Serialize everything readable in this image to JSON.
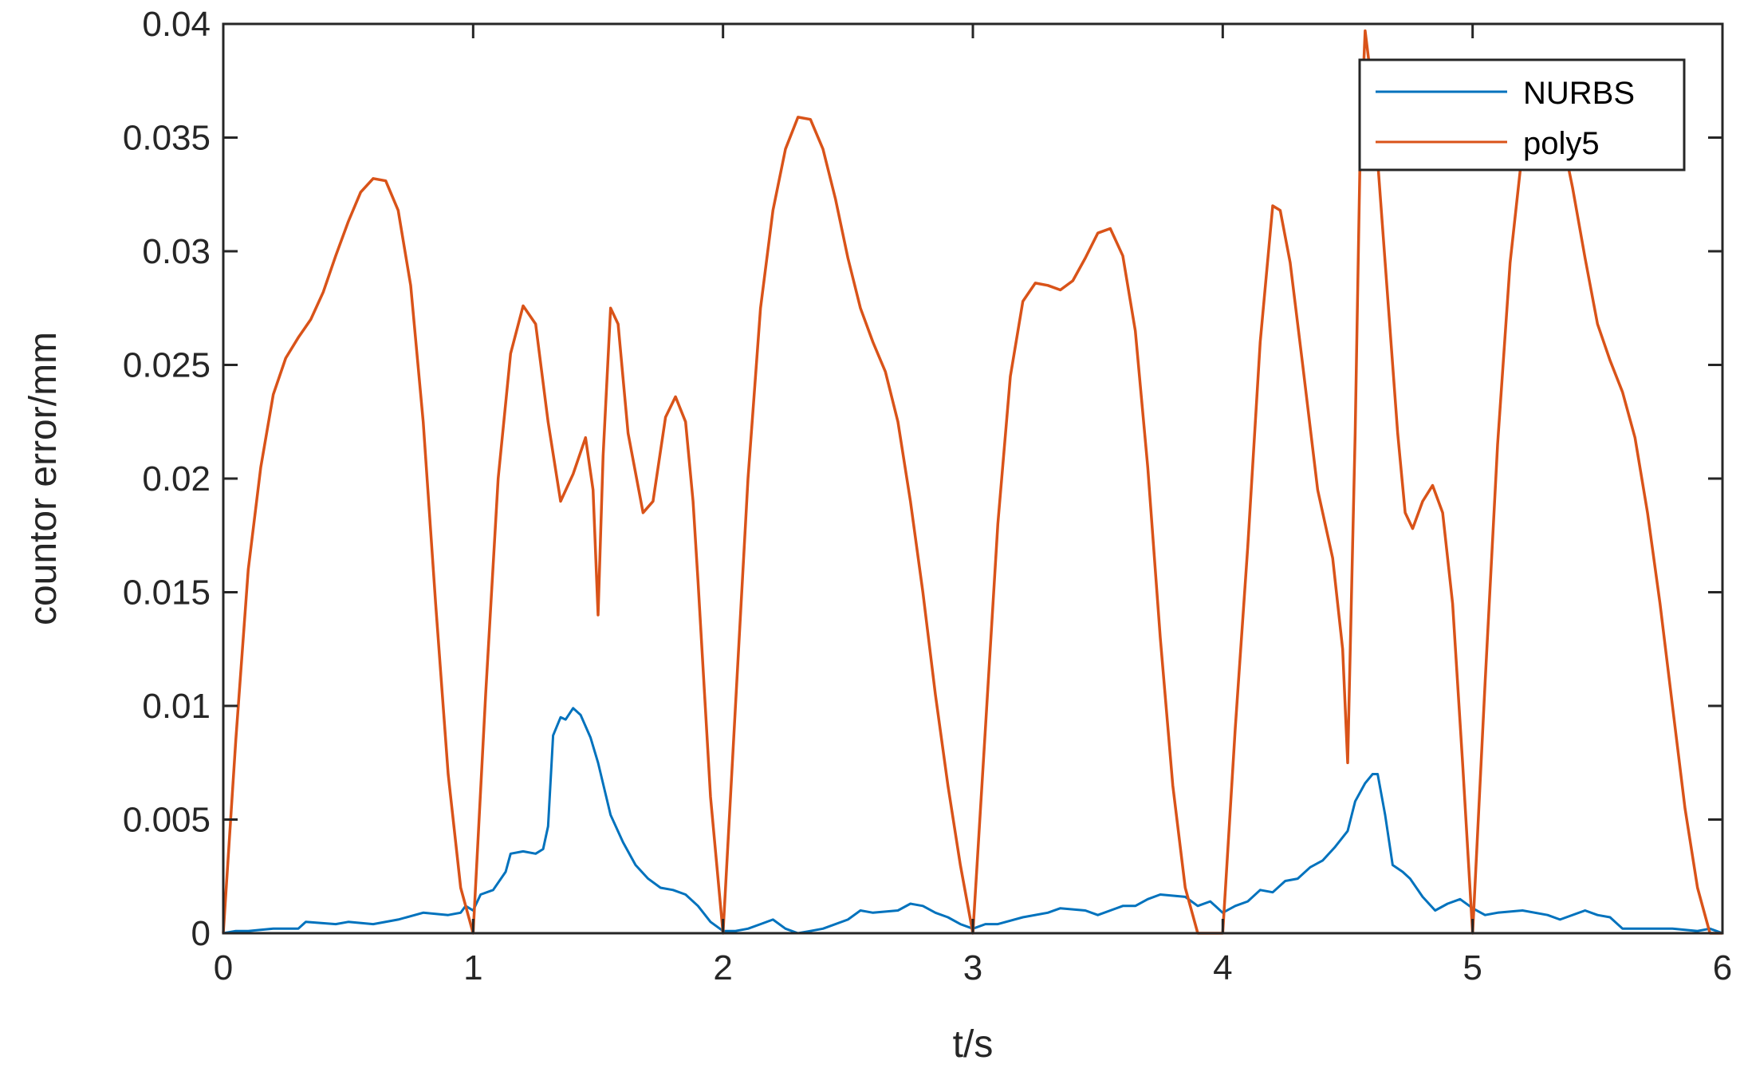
{
  "chart_data": {
    "type": "line",
    "title": "",
    "xlabel": "t/s",
    "ylabel": "countor error/mm",
    "xlim": [
      0,
      6
    ],
    "ylim": [
      0,
      0.04
    ],
    "xticks": [
      0,
      1,
      2,
      3,
      4,
      5,
      6
    ],
    "yticks": [
      0,
      0.005,
      0.01,
      0.015,
      0.02,
      0.025,
      0.03,
      0.035,
      0.04
    ],
    "xtick_labels": [
      "0",
      "1",
      "2",
      "3",
      "4",
      "5",
      "6"
    ],
    "ytick_labels": [
      "0",
      "0.005",
      "0.01",
      "0.015",
      "0.02",
      "0.025",
      "0.03",
      "0.035",
      "0.04"
    ],
    "grid": false,
    "legend_position": "top-right",
    "series": [
      {
        "name": "NURBS",
        "color": "#0072BD",
        "points": [
          [
            0,
            0
          ],
          [
            0.05,
            0.0001
          ],
          [
            0.1,
            0.0001
          ],
          [
            0.2,
            0.0002
          ],
          [
            0.3,
            0.0002
          ],
          [
            0.33,
            0.0005
          ],
          [
            0.45,
            0.0004
          ],
          [
            0.5,
            0.0005
          ],
          [
            0.6,
            0.0004
          ],
          [
            0.7,
            0.0006
          ],
          [
            0.8,
            0.0009
          ],
          [
            0.9,
            0.0008
          ],
          [
            0.95,
            0.0009
          ],
          [
            0.97,
            0.0012
          ],
          [
            1.0,
            0.001
          ],
          [
            1.03,
            0.0017
          ],
          [
            1.08,
            0.0019
          ],
          [
            1.13,
            0.0027
          ],
          [
            1.15,
            0.0035
          ],
          [
            1.2,
            0.0036
          ],
          [
            1.25,
            0.0035
          ],
          [
            1.28,
            0.0037
          ],
          [
            1.3,
            0.0047
          ],
          [
            1.32,
            0.0087
          ],
          [
            1.35,
            0.0095
          ],
          [
            1.37,
            0.0094
          ],
          [
            1.4,
            0.0099
          ],
          [
            1.43,
            0.0096
          ],
          [
            1.47,
            0.0086
          ],
          [
            1.5,
            0.0075
          ],
          [
            1.55,
            0.0052
          ],
          [
            1.6,
            0.004
          ],
          [
            1.65,
            0.003
          ],
          [
            1.7,
            0.0024
          ],
          [
            1.75,
            0.002
          ],
          [
            1.8,
            0.0019
          ],
          [
            1.85,
            0.0017
          ],
          [
            1.9,
            0.0012
          ],
          [
            1.95,
            0.0005
          ],
          [
            2.0,
            0.0001
          ],
          [
            2.05,
            0.0001
          ],
          [
            2.1,
            0.0002
          ],
          [
            2.15,
            0.0004
          ],
          [
            2.2,
            0.0006
          ],
          [
            2.25,
            0.0002
          ],
          [
            2.3,
            0.0
          ],
          [
            2.35,
            0.0001
          ],
          [
            2.4,
            0.0002
          ],
          [
            2.5,
            0.0006
          ],
          [
            2.55,
            0.001
          ],
          [
            2.6,
            0.0009
          ],
          [
            2.7,
            0.001
          ],
          [
            2.75,
            0.0013
          ],
          [
            2.8,
            0.0012
          ],
          [
            2.85,
            0.0009
          ],
          [
            2.9,
            0.0007
          ],
          [
            2.95,
            0.0004
          ],
          [
            3.0,
            0.0002
          ],
          [
            3.05,
            0.0004
          ],
          [
            3.1,
            0.0004
          ],
          [
            3.2,
            0.0007
          ],
          [
            3.3,
            0.0009
          ],
          [
            3.35,
            0.0011
          ],
          [
            3.45,
            0.001
          ],
          [
            3.5,
            0.0008
          ],
          [
            3.6,
            0.0012
          ],
          [
            3.65,
            0.0012
          ],
          [
            3.7,
            0.0015
          ],
          [
            3.75,
            0.0017
          ],
          [
            3.85,
            0.0016
          ],
          [
            3.9,
            0.0012
          ],
          [
            3.95,
            0.0014
          ],
          [
            4.0,
            0.0009
          ],
          [
            4.05,
            0.0012
          ],
          [
            4.1,
            0.0014
          ],
          [
            4.15,
            0.0019
          ],
          [
            4.2,
            0.0018
          ],
          [
            4.25,
            0.0023
          ],
          [
            4.3,
            0.0024
          ],
          [
            4.35,
            0.0029
          ],
          [
            4.4,
            0.0032
          ],
          [
            4.45,
            0.0038
          ],
          [
            4.5,
            0.0045
          ],
          [
            4.53,
            0.0058
          ],
          [
            4.57,
            0.0066
          ],
          [
            4.6,
            0.007
          ],
          [
            4.62,
            0.007
          ],
          [
            4.65,
            0.0052
          ],
          [
            4.68,
            0.003
          ],
          [
            4.72,
            0.0027
          ],
          [
            4.75,
            0.0024
          ],
          [
            4.8,
            0.0016
          ],
          [
            4.85,
            0.001
          ],
          [
            4.9,
            0.0013
          ],
          [
            4.95,
            0.0015
          ],
          [
            5.0,
            0.0011
          ],
          [
            5.05,
            0.0008
          ],
          [
            5.1,
            0.0009
          ],
          [
            5.2,
            0.001
          ],
          [
            5.3,
            0.0008
          ],
          [
            5.35,
            0.0006
          ],
          [
            5.45,
            0.001
          ],
          [
            5.5,
            0.0008
          ],
          [
            5.55,
            0.0007
          ],
          [
            5.6,
            0.0002
          ],
          [
            5.7,
            0.0002
          ],
          [
            5.8,
            0.0002
          ],
          [
            5.9,
            0.0001
          ],
          [
            5.95,
            0.0002
          ],
          [
            6.0,
            0
          ]
        ]
      },
      {
        "name": "poly5",
        "color": "#D95319",
        "points": [
          [
            0,
            0
          ],
          [
            0.05,
            0.0085
          ],
          [
            0.1,
            0.016
          ],
          [
            0.15,
            0.0205
          ],
          [
            0.2,
            0.0237
          ],
          [
            0.25,
            0.0253
          ],
          [
            0.3,
            0.0262
          ],
          [
            0.35,
            0.027
          ],
          [
            0.4,
            0.0282
          ],
          [
            0.45,
            0.0298
          ],
          [
            0.5,
            0.0313
          ],
          [
            0.55,
            0.0326
          ],
          [
            0.6,
            0.0332
          ],
          [
            0.65,
            0.0331
          ],
          [
            0.7,
            0.0318
          ],
          [
            0.75,
            0.0285
          ],
          [
            0.8,
            0.0225
          ],
          [
            0.85,
            0.0145
          ],
          [
            0.9,
            0.007
          ],
          [
            0.95,
            0.002
          ],
          [
            1.0,
            0.0
          ],
          [
            1.05,
            0.0105
          ],
          [
            1.1,
            0.02
          ],
          [
            1.15,
            0.0255
          ],
          [
            1.2,
            0.0276
          ],
          [
            1.25,
            0.0268
          ],
          [
            1.3,
            0.0225
          ],
          [
            1.35,
            0.019
          ],
          [
            1.4,
            0.0202
          ],
          [
            1.45,
            0.0218
          ],
          [
            1.48,
            0.0195
          ],
          [
            1.5,
            0.014
          ],
          [
            1.52,
            0.021
          ],
          [
            1.55,
            0.0275
          ],
          [
            1.58,
            0.0268
          ],
          [
            1.62,
            0.022
          ],
          [
            1.68,
            0.0185
          ],
          [
            1.72,
            0.019
          ],
          [
            1.77,
            0.0227
          ],
          [
            1.81,
            0.0236
          ],
          [
            1.85,
            0.0225
          ],
          [
            1.88,
            0.019
          ],
          [
            1.9,
            0.0155
          ],
          [
            1.95,
            0.006
          ],
          [
            2.0,
            0.0
          ],
          [
            2.05,
            0.01
          ],
          [
            2.1,
            0.02
          ],
          [
            2.15,
            0.0275
          ],
          [
            2.2,
            0.0318
          ],
          [
            2.25,
            0.0345
          ],
          [
            2.3,
            0.0359
          ],
          [
            2.35,
            0.0358
          ],
          [
            2.4,
            0.0345
          ],
          [
            2.45,
            0.0323
          ],
          [
            2.5,
            0.0297
          ],
          [
            2.55,
            0.0275
          ],
          [
            2.6,
            0.026
          ],
          [
            2.65,
            0.0247
          ],
          [
            2.7,
            0.0225
          ],
          [
            2.75,
            0.019
          ],
          [
            2.8,
            0.015
          ],
          [
            2.85,
            0.0105
          ],
          [
            2.9,
            0.0065
          ],
          [
            2.95,
            0.003
          ],
          [
            3.0,
            0.0
          ],
          [
            3.05,
            0.009
          ],
          [
            3.1,
            0.018
          ],
          [
            3.15,
            0.0245
          ],
          [
            3.2,
            0.0278
          ],
          [
            3.25,
            0.0286
          ],
          [
            3.3,
            0.0285
          ],
          [
            3.35,
            0.0283
          ],
          [
            3.4,
            0.0287
          ],
          [
            3.45,
            0.0297
          ],
          [
            3.5,
            0.0308
          ],
          [
            3.55,
            0.031
          ],
          [
            3.6,
            0.0298
          ],
          [
            3.65,
            0.0265
          ],
          [
            3.7,
            0.0205
          ],
          [
            3.75,
            0.013
          ],
          [
            3.8,
            0.0065
          ],
          [
            3.85,
            0.002
          ],
          [
            3.9,
            0.0
          ],
          [
            4.0,
            0.0
          ],
          [
            4.05,
            0.009
          ],
          [
            4.1,
            0.017
          ],
          [
            4.15,
            0.026
          ],
          [
            4.2,
            0.032
          ],
          [
            4.23,
            0.0318
          ],
          [
            4.27,
            0.0295
          ],
          [
            4.32,
            0.025
          ],
          [
            4.38,
            0.0195
          ],
          [
            4.44,
            0.0165
          ],
          [
            4.48,
            0.0125
          ],
          [
            4.5,
            0.0075
          ],
          [
            4.53,
            0.022
          ],
          [
            4.55,
            0.0345
          ],
          [
            4.57,
            0.0397
          ],
          [
            4.6,
            0.037
          ],
          [
            4.65,
            0.0295
          ],
          [
            4.7,
            0.022
          ],
          [
            4.73,
            0.0185
          ],
          [
            4.76,
            0.0178
          ],
          [
            4.8,
            0.019
          ],
          [
            4.84,
            0.0197
          ],
          [
            4.88,
            0.0185
          ],
          [
            4.92,
            0.0145
          ],
          [
            4.96,
            0.0075
          ],
          [
            5.0,
            0.0
          ],
          [
            5.05,
            0.011
          ],
          [
            5.1,
            0.0215
          ],
          [
            5.15,
            0.0295
          ],
          [
            5.2,
            0.0345
          ],
          [
            5.25,
            0.037
          ],
          [
            5.3,
            0.0372
          ],
          [
            5.35,
            0.0355
          ],
          [
            5.4,
            0.0328
          ],
          [
            5.45,
            0.0297
          ],
          [
            5.5,
            0.0268
          ],
          [
            5.55,
            0.0252
          ],
          [
            5.6,
            0.0238
          ],
          [
            5.65,
            0.0218
          ],
          [
            5.7,
            0.0185
          ],
          [
            5.75,
            0.0145
          ],
          [
            5.8,
            0.01
          ],
          [
            5.85,
            0.0055
          ],
          [
            5.9,
            0.002
          ],
          [
            5.95,
            0.0
          ],
          [
            6.0,
            0
          ]
        ]
      }
    ]
  }
}
